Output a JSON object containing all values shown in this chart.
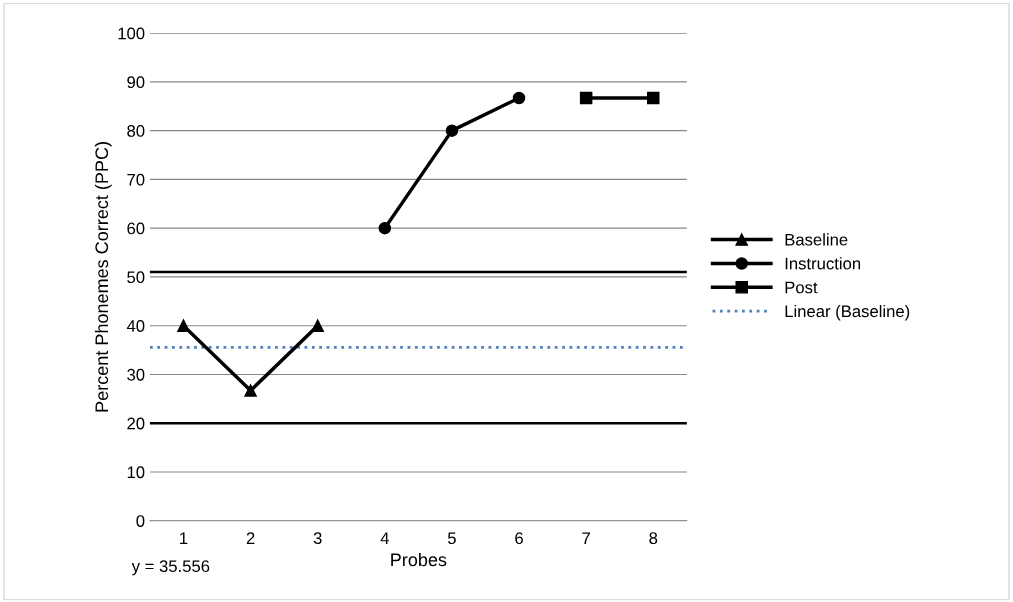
{
  "chart_data": {
    "type": "line",
    "xlabel": "Probes",
    "ylabel": "Percent Phonemes Correct (PPC)",
    "categories": [
      "1",
      "2",
      "3",
      "4",
      "5",
      "6",
      "7",
      "8"
    ],
    "series": [
      {
        "name": "Baseline",
        "color": "#000000",
        "marker": "triangle",
        "values": [
          40,
          26.7,
          40,
          null,
          null,
          null,
          null,
          null
        ]
      },
      {
        "name": "Instruction",
        "color": "#000000",
        "marker": "circle",
        "values": [
          null,
          null,
          null,
          60,
          80,
          86.7,
          null,
          null
        ]
      },
      {
        "name": "Post",
        "color": "#000000",
        "marker": "square",
        "values": [
          null,
          null,
          null,
          null,
          null,
          null,
          86.7,
          86.7
        ]
      }
    ],
    "ref_lines": [
      {
        "axis": "y",
        "value": 35.556,
        "label": "Linear (Baseline)",
        "color": "#4f81bd",
        "line_style": "dotted"
      },
      {
        "axis": "y",
        "value": 51,
        "color": "#000000",
        "line_style": "solid"
      },
      {
        "axis": "y",
        "value": 20,
        "color": "#000000",
        "line_style": "solid"
      }
    ],
    "annotations": [
      "y = 35.556"
    ],
    "ylim": [
      0,
      100
    ],
    "yticks": [
      0,
      10,
      20,
      30,
      40,
      50,
      60,
      70,
      80,
      90,
      100
    ],
    "grid": "y",
    "legend": "right",
    "line_style": "solid"
  }
}
